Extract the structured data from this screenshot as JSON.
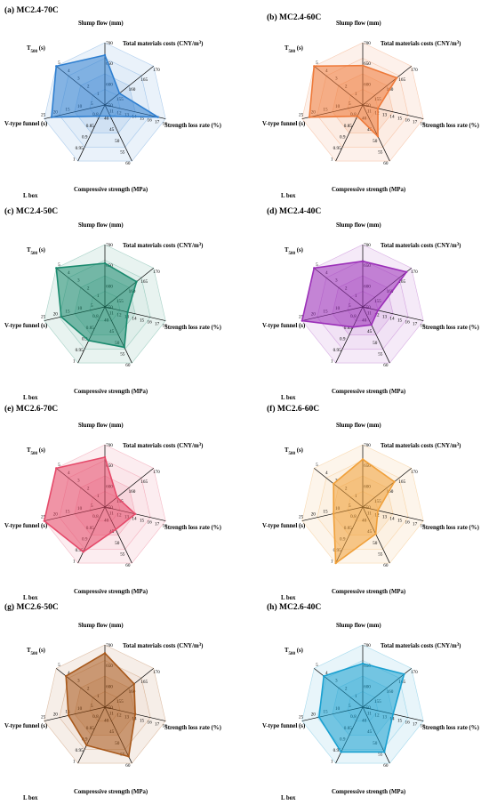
{
  "axes": [
    {
      "key": "slump",
      "label": "Slump flow (mm)",
      "ticks": [
        "550",
        "600",
        "650",
        "700"
      ],
      "min": 550,
      "max": 700
    },
    {
      "key": "cost",
      "label": "Total materials costs (CNY/m",
      "label_sup": "3",
      "label_tail": ")",
      "ticks": [
        "155",
        "160",
        "165",
        "170"
      ],
      "min": 150,
      "max": 170
    },
    {
      "key": "loss",
      "label": "Strength loss rate (%)",
      "ticks": [
        "11",
        "12",
        "13",
        "14",
        "15",
        "16",
        "17",
        "18"
      ],
      "min": 10,
      "max": 18
    },
    {
      "key": "comp",
      "label": "Compressive strength (MPa)",
      "ticks": [
        "40",
        "45",
        "50",
        "55",
        "60"
      ],
      "min": 35,
      "max": 60
    },
    {
      "key": "lbox",
      "label": "L box",
      "ticks": [
        "0.8",
        "0.85",
        "0.9",
        "0.95",
        "1"
      ],
      "min": 0.75,
      "max": 1
    },
    {
      "key": "vfun",
      "label": "V-type funnel (s)",
      "ticks": [
        "5",
        "10",
        "15",
        "20",
        "25"
      ],
      "min": 0,
      "max": 25
    },
    {
      "key": "t500",
      "label": "T",
      "label_sub": "500",
      "label_tail": " (s)",
      "ticks": [
        "1",
        "2",
        "3",
        "4",
        "5"
      ],
      "min": 0,
      "max": 5
    }
  ],
  "chart_data": [
    {
      "type": "radar",
      "title": "(a) MC2.4-70C",
      "color": "#2f7fd0",
      "values": {
        "slump": 670,
        "cost": 156,
        "loss": 17,
        "comp": 40,
        "lbox": 0.8,
        "vfun": 22,
        "t500": 5
      }
    },
    {
      "type": "radar",
      "title": "(b) MC2.4-60C",
      "color": "#ee7a3a",
      "values": {
        "slump": 645,
        "cost": 164,
        "loss": 12,
        "comp": 49,
        "lbox": 0.8,
        "vfun": 22,
        "t500": 5
      }
    },
    {
      "type": "radar",
      "title": "(c) MC2.4-50C",
      "color": "#1a8a6e",
      "values": {
        "slump": 655,
        "cost": 163,
        "loss": 13,
        "comp": 53,
        "lbox": 0.9,
        "vfun": 18,
        "t500": 5
      }
    },
    {
      "type": "radar",
      "title": "(d) MC2.4-40C",
      "color": "#9b2fb8",
      "values": {
        "slump": 660,
        "cost": 168,
        "loss": 12,
        "comp": 43,
        "lbox": 0.84,
        "vfun": 25,
        "t500": 5
      }
    },
    {
      "type": "radar",
      "title": "(e) MC2.6-70C",
      "color": "#e54a6a",
      "values": {
        "slump": 670,
        "cost": 155,
        "loss": 14,
        "comp": 45,
        "lbox": 0.95,
        "vfun": 25,
        "t500": 5
      }
    },
    {
      "type": "radar",
      "title": "(f) MC2.6-60C",
      "color": "#f0a03a",
      "values": {
        "slump": 665,
        "cost": 163,
        "loss": 12,
        "comp": 47,
        "lbox": 1,
        "vfun": 12,
        "t500": 3
      }
    },
    {
      "type": "radar",
      "title": "(g) MC2.6-50C",
      "color": "#a8581a",
      "values": {
        "slump": 680,
        "cost": 162,
        "loss": 14,
        "comp": 57,
        "lbox": 0.92,
        "vfun": 15,
        "t500": 4
      }
    },
    {
      "type": "radar",
      "title": "(h) MC2.6-40C",
      "color": "#1aa0d0",
      "values": {
        "slump": 655,
        "cost": 167,
        "loss": 14,
        "comp": 55,
        "lbox": 0.95,
        "vfun": 18,
        "t500": 4
      }
    }
  ]
}
